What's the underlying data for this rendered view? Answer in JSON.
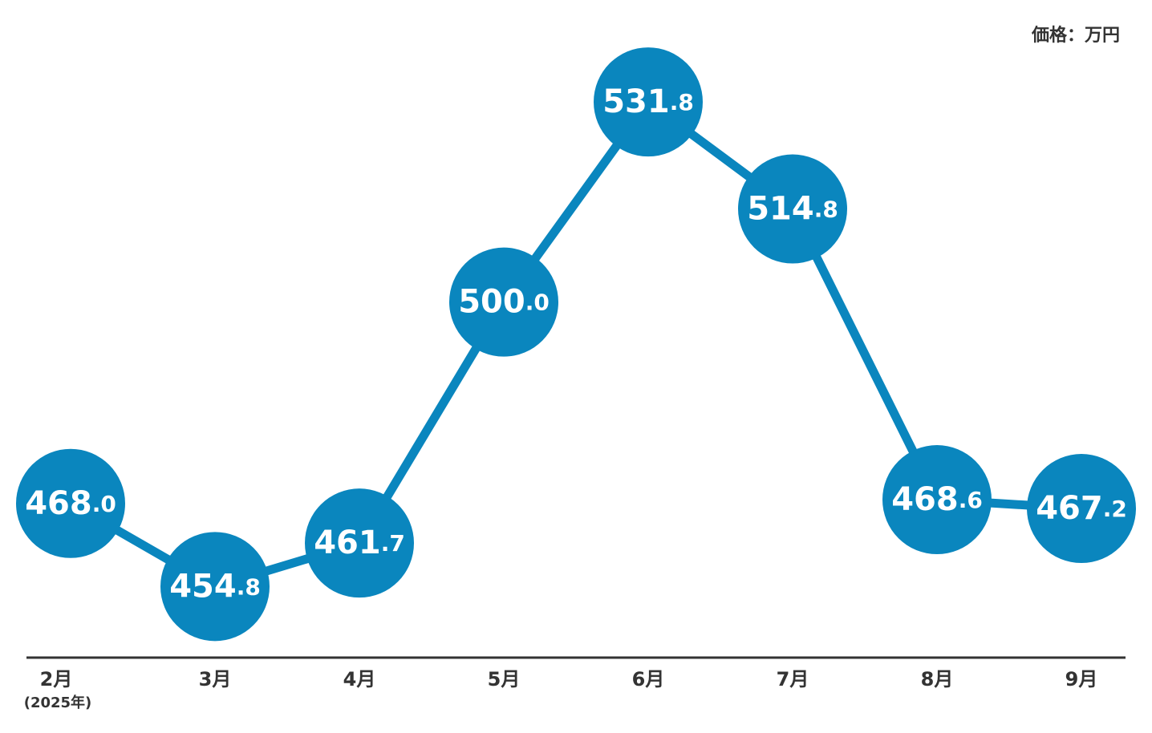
{
  "chart_data": {
    "type": "line",
    "unit_label": "価格：万円",
    "categories": [
      "2月",
      "3月",
      "4月",
      "5月",
      "6月",
      "7月",
      "8月",
      "9月"
    ],
    "x_note": "(2025年)",
    "values": [
      468.0,
      454.8,
      461.7,
      500.0,
      531.8,
      514.8,
      468.6,
      467.2
    ],
    "value_labels": [
      "468.0",
      "454.8",
      "461.7",
      "500.0",
      "531.8",
      "514.8",
      "468.6",
      "467.2"
    ],
    "color": "#0a86be",
    "ylim": [
      443.5,
      548
    ]
  }
}
